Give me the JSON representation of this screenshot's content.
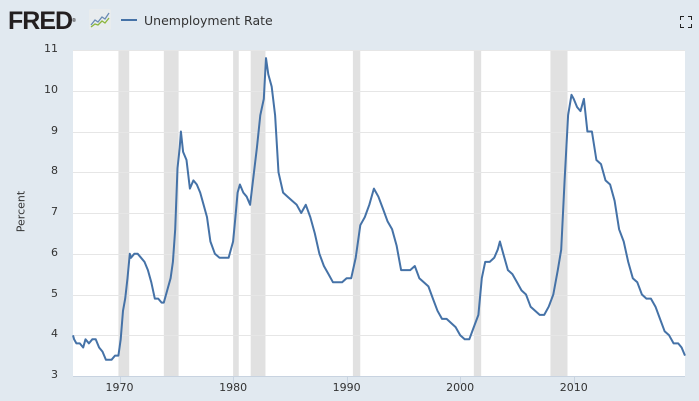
{
  "header": {
    "logo_text": "FRED",
    "logo_reg": "®",
    "legend_label": "Unemployment Rate",
    "series_color": "#4572a7"
  },
  "chart_data": {
    "type": "line",
    "title": "Unemployment Rate",
    "xlabel": "",
    "ylabel": "Percent",
    "ylim": [
      3,
      11
    ],
    "xlim": [
      1965.9,
      2019.8
    ],
    "yticks": [
      3,
      4,
      5,
      6,
      7,
      8,
      9,
      10,
      11
    ],
    "xticks": [
      1970,
      1980,
      1990,
      2000,
      2010
    ],
    "grid": true,
    "legend_position": "top-left",
    "recessions": [
      [
        1969.9,
        1970.85
      ],
      [
        1973.9,
        1975.2
      ],
      [
        1980.0,
        1980.5
      ],
      [
        1981.55,
        1982.85
      ],
      [
        1990.55,
        1991.2
      ],
      [
        2001.2,
        2001.85
      ],
      [
        2007.95,
        2009.45
      ]
    ],
    "series": [
      {
        "name": "Unemployment Rate",
        "x": [
          1965.9,
          1966.0,
          1966.2,
          1966.5,
          1966.8,
          1967.0,
          1967.3,
          1967.6,
          1967.9,
          1968.2,
          1968.5,
          1968.8,
          1969.0,
          1969.3,
          1969.6,
          1969.9,
          1970.1,
          1970.3,
          1970.5,
          1970.7,
          1970.9,
          1971.0,
          1971.3,
          1971.6,
          1971.9,
          1972.2,
          1972.5,
          1972.8,
          1973.1,
          1973.4,
          1973.7,
          1973.9,
          1974.2,
          1974.5,
          1974.7,
          1974.9,
          1975.1,
          1975.3,
          1975.4,
          1975.6,
          1975.9,
          1976.2,
          1976.5,
          1976.8,
          1977.1,
          1977.4,
          1977.7,
          1978.0,
          1978.4,
          1978.8,
          1979.2,
          1979.6,
          1980.0,
          1980.2,
          1980.4,
          1980.6,
          1980.9,
          1981.2,
          1981.5,
          1981.8,
          1982.1,
          1982.4,
          1982.7,
          1982.9,
          1983.1,
          1983.4,
          1983.7,
          1984.0,
          1984.4,
          1984.8,
          1985.2,
          1985.6,
          1986.0,
          1986.4,
          1986.8,
          1987.2,
          1987.6,
          1988.0,
          1988.4,
          1988.8,
          1989.2,
          1989.6,
          1990.0,
          1990.4,
          1990.8,
          1991.2,
          1991.6,
          1992.0,
          1992.4,
          1992.8,
          1993.2,
          1993.6,
          1994.0,
          1994.4,
          1994.8,
          1995.2,
          1995.6,
          1996.0,
          1996.4,
          1996.8,
          1997.2,
          1997.6,
          1998.0,
          1998.4,
          1998.8,
          1999.2,
          1999.6,
          2000.0,
          2000.4,
          2000.8,
          2001.2,
          2001.6,
          2001.9,
          2002.2,
          2002.6,
          2003.0,
          2003.3,
          2003.5,
          2003.8,
          2004.2,
          2004.6,
          2005.0,
          2005.4,
          2005.8,
          2006.2,
          2006.6,
          2007.0,
          2007.4,
          2007.8,
          2008.2,
          2008.6,
          2008.9,
          2009.2,
          2009.5,
          2009.8,
          2010.0,
          2010.3,
          2010.6,
          2010.9,
          2011.2,
          2011.6,
          2012.0,
          2012.4,
          2012.8,
          2013.2,
          2013.6,
          2014.0,
          2014.4,
          2014.8,
          2015.2,
          2015.6,
          2016.0,
          2016.4,
          2016.8,
          2017.2,
          2017.6,
          2018.0,
          2018.4,
          2018.8,
          2019.2,
          2019.5,
          2019.8
        ],
        "values": [
          4.0,
          3.9,
          3.8,
          3.8,
          3.7,
          3.9,
          3.8,
          3.9,
          3.9,
          3.7,
          3.6,
          3.4,
          3.4,
          3.4,
          3.5,
          3.5,
          3.9,
          4.6,
          4.9,
          5.4,
          6.0,
          5.9,
          6.0,
          6.0,
          5.9,
          5.8,
          5.6,
          5.3,
          4.9,
          4.9,
          4.8,
          4.8,
          5.1,
          5.4,
          5.8,
          6.6,
          8.1,
          8.6,
          9.0,
          8.5,
          8.3,
          7.6,
          7.8,
          7.7,
          7.5,
          7.2,
          6.9,
          6.3,
          6.0,
          5.9,
          5.9,
          5.9,
          6.3,
          6.9,
          7.5,
          7.7,
          7.5,
          7.4,
          7.2,
          7.9,
          8.6,
          9.4,
          9.8,
          10.8,
          10.4,
          10.1,
          9.4,
          8.0,
          7.5,
          7.4,
          7.3,
          7.2,
          7.0,
          7.2,
          6.9,
          6.5,
          6.0,
          5.7,
          5.5,
          5.3,
          5.3,
          5.3,
          5.4,
          5.4,
          5.9,
          6.7,
          6.9,
          7.2,
          7.6,
          7.4,
          7.1,
          6.8,
          6.6,
          6.2,
          5.6,
          5.6,
          5.6,
          5.7,
          5.4,
          5.3,
          5.2,
          4.9,
          4.6,
          4.4,
          4.4,
          4.3,
          4.2,
          4.0,
          3.9,
          3.9,
          4.2,
          4.5,
          5.4,
          5.8,
          5.8,
          5.9,
          6.1,
          6.3,
          6.0,
          5.6,
          5.5,
          5.3,
          5.1,
          5.0,
          4.7,
          4.6,
          4.5,
          4.5,
          4.7,
          5.0,
          5.6,
          6.1,
          7.8,
          9.4,
          9.9,
          9.8,
          9.6,
          9.5,
          9.8,
          9.0,
          9.0,
          8.3,
          8.2,
          7.8,
          7.7,
          7.3,
          6.6,
          6.3,
          5.8,
          5.4,
          5.3,
          5.0,
          4.9,
          4.9,
          4.7,
          4.4,
          4.1,
          4.0,
          3.8,
          3.8,
          3.7,
          3.5
        ]
      }
    ]
  },
  "axes": {
    "ylabel": "Percent",
    "yticks": [
      "3",
      "4",
      "5",
      "6",
      "7",
      "8",
      "9",
      "10",
      "11"
    ],
    "xticks": [
      "1970",
      "1980",
      "1990",
      "2000",
      "2010"
    ]
  }
}
